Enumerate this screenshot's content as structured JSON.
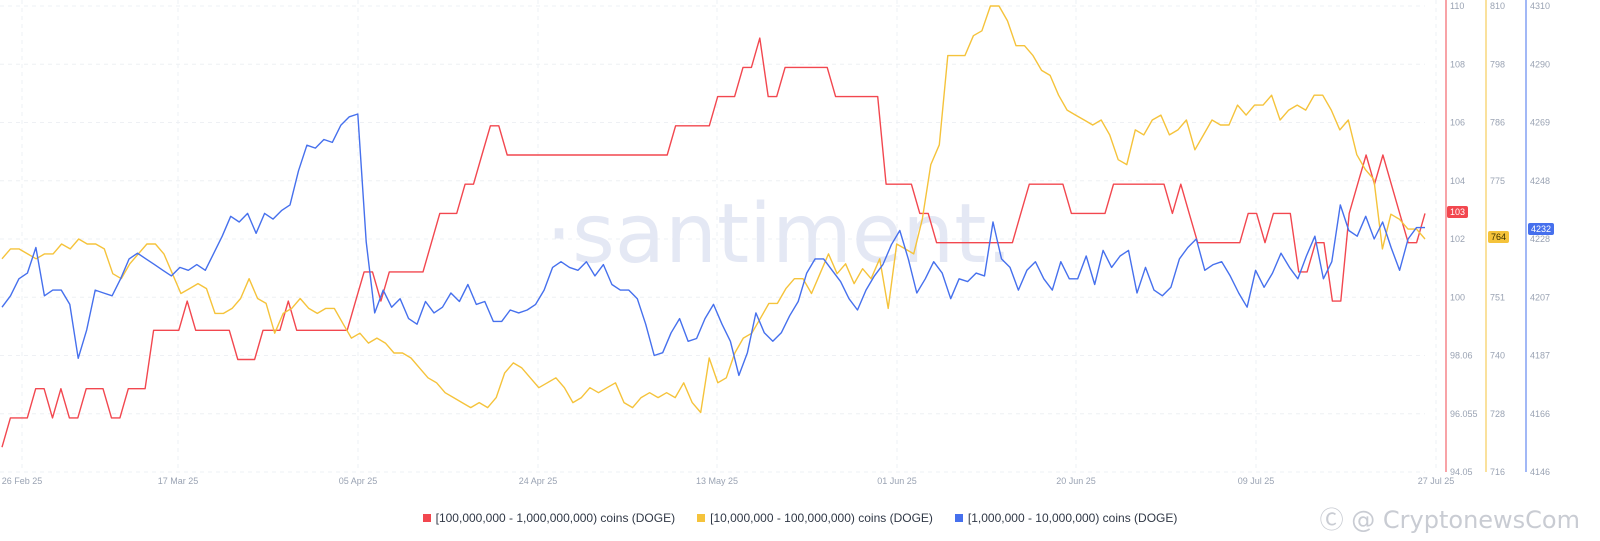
{
  "watermark": "·santiment.",
  "credit": "Ⓒ @ CryptonewsCom",
  "chart_data": {
    "type": "line",
    "x_ticks": [
      "26 Feb 25",
      "17 Mar 25",
      "05 Apr 25",
      "24 Apr 25",
      "13 May 25",
      "01 Jun 25",
      "20 Jun 25",
      "09 Jul 25",
      "27 Jul 25"
    ],
    "axes": [
      {
        "name": "red",
        "ticks": [
          "110",
          "108",
          "106",
          "104",
          "102",
          "100",
          "98.06",
          "96.055",
          "94.05"
        ],
        "ylim": [
          94.05,
          110
        ]
      },
      {
        "name": "yellow",
        "ticks": [
          "810",
          "798",
          "786",
          "775",
          "763",
          "751",
          "740",
          "728",
          "716"
        ],
        "ylim": [
          716,
          810
        ]
      },
      {
        "name": "blue",
        "ticks": [
          "4310",
          "4290",
          "4269",
          "4248",
          "4228",
          "4207",
          "4187",
          "4166",
          "4146"
        ],
        "ylim": [
          4146,
          4310
        ]
      }
    ],
    "current_values": {
      "red": "103",
      "yellow": "764",
      "blue": "4232"
    },
    "series": [
      {
        "name": "[100,000,000 - 1,000,000,000) coins (DOGE)",
        "color": "#f2474f",
        "values": [
          94.9,
          95.9,
          95.9,
          95.9,
          96.9,
          96.9,
          95.9,
          96.9,
          95.9,
          95.9,
          96.9,
          96.9,
          96.9,
          95.9,
          95.9,
          96.9,
          96.9,
          96.9,
          98.9,
          98.9,
          98.9,
          98.9,
          99.9,
          98.9,
          98.9,
          98.9,
          98.9,
          98.9,
          97.9,
          97.9,
          97.9,
          98.9,
          98.9,
          98.9,
          99.9,
          98.9,
          98.9,
          98.9,
          98.9,
          98.9,
          98.9,
          98.9,
          99.9,
          100.9,
          100.9,
          99.9,
          100.9,
          100.9,
          100.9,
          100.9,
          100.9,
          101.9,
          102.9,
          102.9,
          102.9,
          103.9,
          103.9,
          104.9,
          105.9,
          105.9,
          104.9,
          104.9,
          104.9,
          104.9,
          104.9,
          104.9,
          104.9,
          104.9,
          104.9,
          104.9,
          104.9,
          104.9,
          104.9,
          104.9,
          104.9,
          104.9,
          104.9,
          104.9,
          104.9,
          104.9,
          105.9,
          105.9,
          105.9,
          105.9,
          105.9,
          106.9,
          106.9,
          106.9,
          107.9,
          107.9,
          108.9,
          106.9,
          106.9,
          107.9,
          107.9,
          107.9,
          107.9,
          107.9,
          107.9,
          106.9,
          106.9,
          106.9,
          106.9,
          106.9,
          106.9,
          103.9,
          103.9,
          103.9,
          103.9,
          102.9,
          102.9,
          101.9,
          101.9,
          101.9,
          101.9,
          101.9,
          101.9,
          101.9,
          101.9,
          101.9,
          101.9,
          102.9,
          103.9,
          103.9,
          103.9,
          103.9,
          103.9,
          102.9,
          102.9,
          102.9,
          102.9,
          102.9,
          103.9,
          103.9,
          103.9,
          103.9,
          103.9,
          103.9,
          103.9,
          102.9,
          103.9,
          102.9,
          101.9,
          101.9,
          101.9,
          101.9,
          101.9,
          101.9,
          102.9,
          102.9,
          101.9,
          102.9,
          102.9,
          102.9,
          100.9,
          100.9,
          101.9,
          101.9,
          99.9,
          99.9,
          102.9,
          103.9,
          104.9,
          103.9,
          104.9,
          103.9,
          102.9,
          101.9,
          101.9,
          102.9
        ]
      },
      {
        "name": "[10,000,000 - 100,000,000) coins (DOGE)",
        "color": "#f5c33b",
        "values": [
          759,
          761,
          761,
          760,
          759,
          760,
          760,
          762,
          761,
          763,
          762,
          762,
          761,
          756,
          755,
          758,
          760,
          762,
          762,
          760,
          756,
          752,
          753,
          754,
          753,
          748,
          748,
          749,
          751,
          755,
          751,
          750,
          744,
          748,
          749,
          751,
          749,
          748,
          749,
          749,
          746,
          743,
          744,
          742,
          743,
          742,
          740,
          740,
          739,
          737,
          735,
          734,
          732,
          731,
          730,
          729,
          730,
          729,
          731,
          736,
          738,
          737,
          735,
          733,
          734,
          735,
          733,
          730,
          731,
          733,
          732,
          733,
          734,
          730,
          729,
          731,
          732,
          731,
          732,
          731,
          734,
          730,
          728,
          739,
          734,
          735,
          740,
          743,
          744,
          747,
          750,
          750,
          753,
          755,
          755,
          752,
          756,
          760,
          756,
          758,
          754,
          757,
          755,
          759,
          749,
          762,
          761,
          760,
          767,
          778,
          782,
          800,
          800,
          800,
          804,
          805,
          810,
          810,
          807,
          802,
          802,
          800,
          797,
          796,
          792,
          789,
          788,
          787,
          786,
          787,
          784,
          779,
          778,
          785,
          784,
          787,
          788,
          784,
          785,
          787,
          781,
          784,
          787,
          786,
          786,
          790,
          788,
          790,
          790,
          792,
          787,
          789,
          790,
          789,
          792,
          792,
          789,
          785,
          787,
          780,
          777,
          775,
          761,
          768,
          767,
          765,
          765,
          763
        ]
      },
      {
        "name": "[1,000,000 - 10,000,000) coins (DOGE)",
        "color": "#4670ed",
        "values": [
          4204,
          4208,
          4214,
          4216,
          4225,
          4208,
          4210,
          4210,
          4205,
          4186,
          4196,
          4210,
          4209,
          4208,
          4214,
          4221,
          4223,
          4221,
          4219,
          4217,
          4215,
          4218,
          4217,
          4219,
          4217,
          4223,
          4229,
          4236,
          4234,
          4237,
          4230,
          4237,
          4235,
          4238,
          4240,
          4252,
          4261,
          4260,
          4263,
          4262,
          4268,
          4271,
          4272,
          4227,
          4202,
          4210,
          4204,
          4207,
          4200,
          4198,
          4206,
          4202,
          4204,
          4209,
          4206,
          4212,
          4205,
          4206,
          4199,
          4199,
          4203,
          4202,
          4203,
          4205,
          4210,
          4218,
          4220,
          4218,
          4217,
          4220,
          4215,
          4219,
          4212,
          4210,
          4210,
          4207,
          4198,
          4187,
          4188,
          4195,
          4200,
          4192,
          4193,
          4200,
          4205,
          4198,
          4192,
          4180,
          4188,
          4202,
          4195,
          4192,
          4195,
          4201,
          4206,
          4216,
          4221,
          4221,
          4217,
          4213,
          4207,
          4203,
          4210,
          4215,
          4219,
          4226,
          4231,
          4221,
          4209,
          4214,
          4220,
          4216,
          4207,
          4214,
          4213,
          4216,
          4215,
          4234,
          4221,
          4218,
          4210,
          4217,
          4220,
          4214,
          4210,
          4220,
          4214,
          4214,
          4222,
          4212,
          4224,
          4218,
          4222,
          4224,
          4209,
          4218,
          4210,
          4208,
          4211,
          4221,
          4225,
          4228,
          4217,
          4219,
          4220,
          4215,
          4209,
          4204,
          4217,
          4211,
          4216,
          4223,
          4218,
          4214,
          4222,
          4229,
          4214,
          4220,
          4240,
          4231,
          4229,
          4236,
          4228,
          4234,
          4225,
          4217,
          4228,
          4232,
          4232
        ]
      }
    ]
  }
}
